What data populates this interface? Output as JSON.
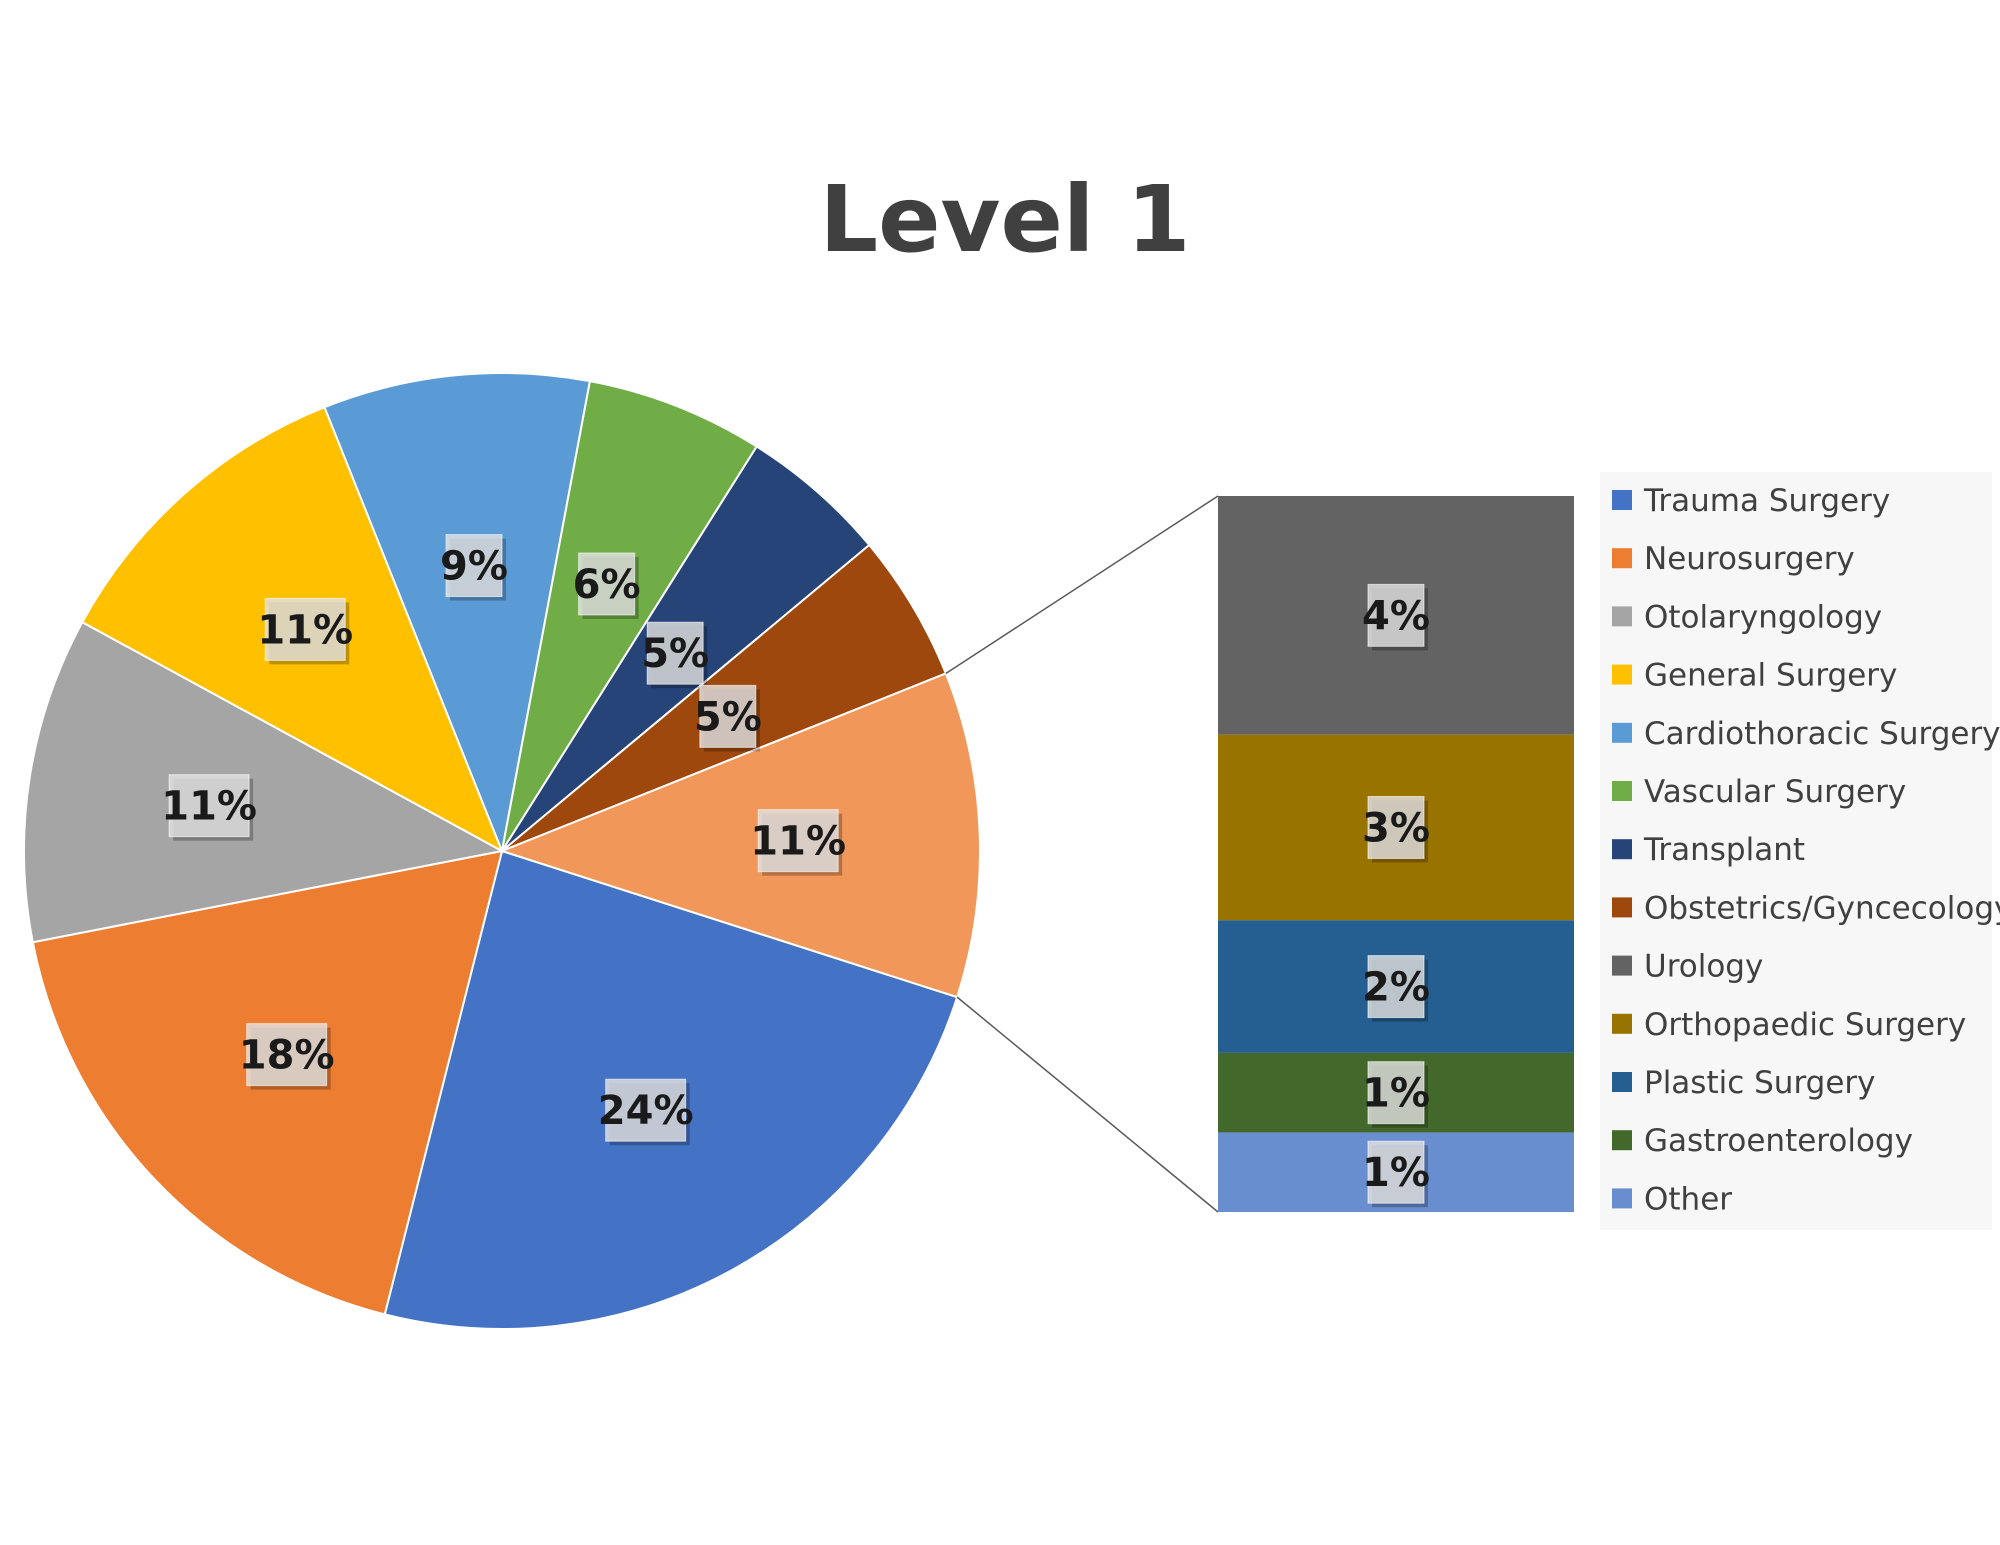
{
  "chart_data": {
    "type": "pie",
    "subtype": "bar-of-pie",
    "title": "Level 1",
    "series": [
      {
        "name": "Trauma Surgery",
        "label": "24%",
        "value": 24,
        "color": "#4472C4"
      },
      {
        "name": "Neurosurgery",
        "label": "18%",
        "value": 18,
        "color": "#ED7D31"
      },
      {
        "name": "Otolaryngology",
        "label": "11%",
        "value": 11,
        "color": "#A5A5A5"
      },
      {
        "name": "General Surgery",
        "label": "11%",
        "value": 11,
        "color": "#FFC000"
      },
      {
        "name": "Cardiothoracic Surgery",
        "label": "9%",
        "value": 9,
        "color": "#5B9BD5"
      },
      {
        "name": "Vascular Surgery",
        "label": "6%",
        "value": 6,
        "color": "#70AD47"
      },
      {
        "name": "Transplant",
        "label": "5%",
        "value": 5,
        "color": "#264478"
      },
      {
        "name": "Obstetrics/Gyncecology",
        "label": "5%",
        "value": 5,
        "color": "#9E480E"
      },
      {
        "name": "Urology",
        "label": "4%",
        "value": 4,
        "color": "#636363"
      },
      {
        "name": "Orthopaedic Surgery",
        "label": "3%",
        "value": 3,
        "color": "#997300"
      },
      {
        "name": "Plastic Surgery",
        "label": "2%",
        "value": 2,
        "color": "#255E91"
      },
      {
        "name": "Gastroenterology",
        "label": "1%",
        "value": 1,
        "color": "#43682B"
      },
      {
        "name": "Other",
        "label": "1%",
        "value": 1,
        "color": "#698ED0"
      }
    ],
    "pie_categories": [
      "Trauma Surgery",
      "Neurosurgery",
      "Otolaryngology",
      "General Surgery",
      "Cardiothoracic Surgery",
      "Vascular Surgery",
      "Transplant",
      "Obstetrics/Gyncecology"
    ],
    "other_slice": {
      "label": "11%",
      "value": 11,
      "color": "#F1975A"
    },
    "bar_categories": [
      "Urology",
      "Orthopaedic Surgery",
      "Plastic Surgery",
      "Gastroenterology",
      "Other"
    ],
    "legend": {
      "position": "right"
    }
  }
}
